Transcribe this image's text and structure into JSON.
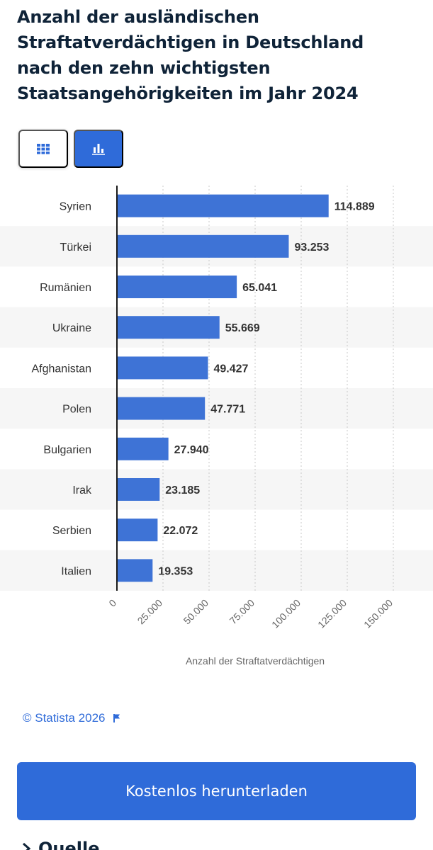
{
  "title": "Anzahl der ausländischen Straftatverdächtigen in Deutschland nach den zehn wichtigsten Staatsangehörigkeiten im Jahr 2024",
  "view_toggle": {
    "table_icon": "grid-icon",
    "chart_icon": "bar-chart-icon"
  },
  "chart_data": {
    "type": "bar",
    "orientation": "horizontal",
    "categories": [
      "Syrien",
      "Türkei",
      "Rumänien",
      "Ukraine",
      "Afghanistan",
      "Polen",
      "Bulgarien",
      "Irak",
      "Serbien",
      "Italien"
    ],
    "values": [
      114889,
      93253,
      65041,
      55669,
      49427,
      47771,
      27940,
      23185,
      22072,
      19353
    ],
    "value_labels": [
      "114.889",
      "93.253",
      "65.041",
      "55.669",
      "49.427",
      "47.771",
      "27.940",
      "23.185",
      "22.072",
      "19.353"
    ],
    "xlabel": "Anzahl der Straftatverdächtigen",
    "xlim": [
      0,
      150000
    ],
    "ticks": [
      0,
      25000,
      50000,
      75000,
      100000,
      125000,
      150000
    ],
    "tick_labels": [
      "0",
      "25.000",
      "50.000",
      "75.000",
      "100.000",
      "125.000",
      "150.000"
    ],
    "grid": true,
    "bar_color": "#3e73d6"
  },
  "copyright": "© Statista 2026",
  "download_label": "Kostenlos herunterladen",
  "source_heading": "Quelle",
  "colors": {
    "accent": "#2f6bd9",
    "text": "#0f2338",
    "stripe": "#f6f6f6"
  }
}
